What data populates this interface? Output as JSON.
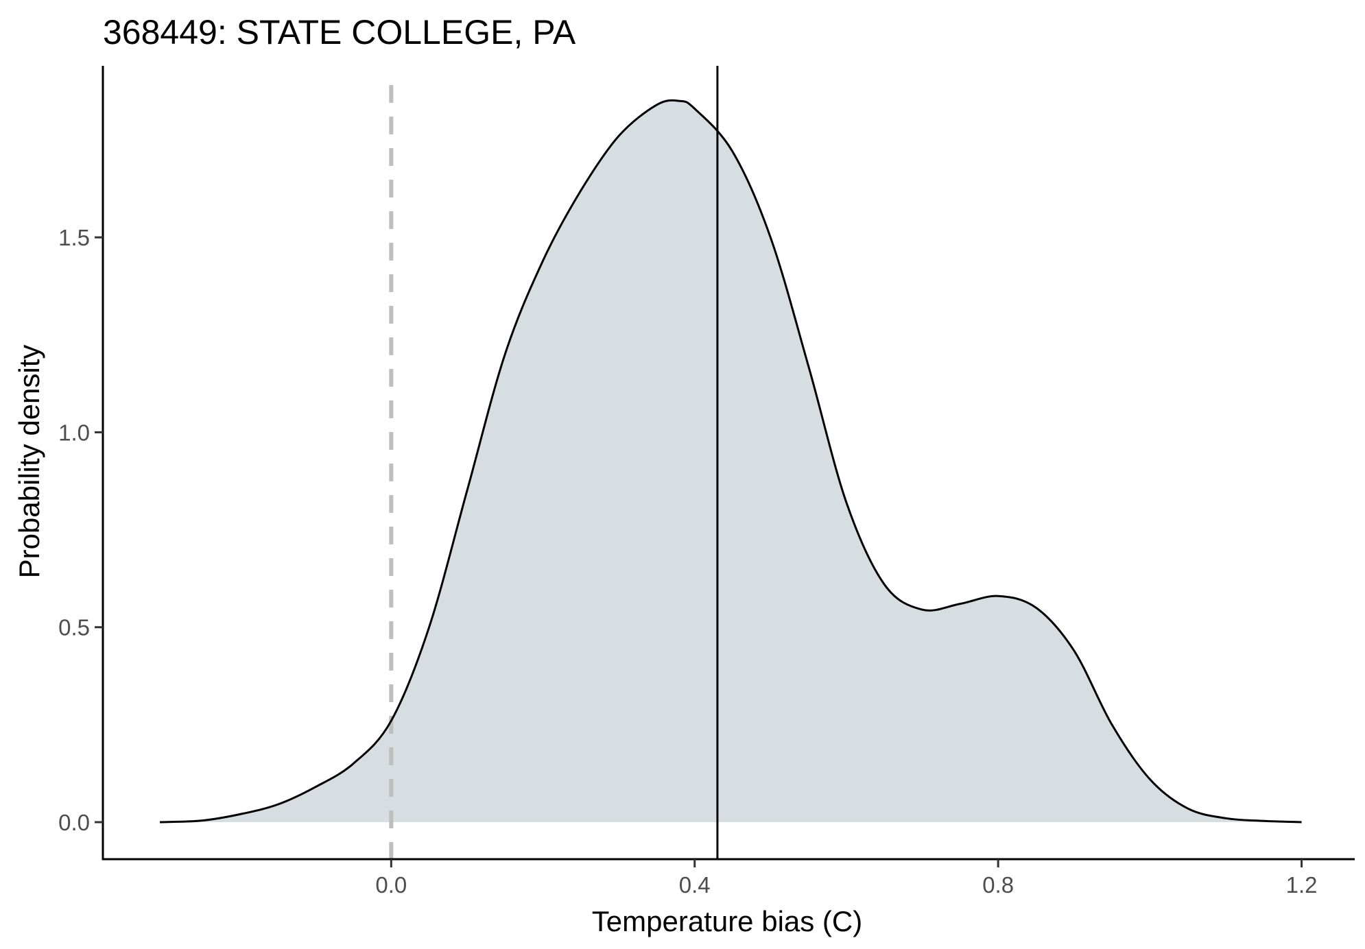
{
  "chart_data": {
    "type": "area",
    "title": "368449: STATE COLLEGE, PA",
    "xlabel": "Temperature bias (C)",
    "ylabel": "Probability density",
    "xlim": [
      -0.38,
      1.27
    ],
    "ylim": [
      -0.095,
      1.94
    ],
    "x_ticks": [
      0.0,
      0.4,
      0.8,
      1.2
    ],
    "x_tick_labels": [
      "0.0",
      "0.4",
      "0.8",
      "1.2"
    ],
    "y_ticks": [
      0.0,
      0.5,
      1.0,
      1.5
    ],
    "y_tick_labels": [
      "0.0",
      "0.5",
      "1.0",
      "1.5"
    ],
    "grid": false,
    "fill_color": "#d7dee1",
    "line_color": "#000000",
    "density_curve": {
      "x": [
        -0.305,
        -0.25,
        -0.2,
        -0.15,
        -0.1,
        -0.05,
        0.0,
        0.05,
        0.1,
        0.15,
        0.2,
        0.25,
        0.3,
        0.35,
        0.38,
        0.4,
        0.45,
        0.5,
        0.55,
        0.6,
        0.65,
        0.7,
        0.75,
        0.8,
        0.85,
        0.9,
        0.95,
        1.0,
        1.05,
        1.1,
        1.15,
        1.2
      ],
      "y": [
        0.0,
        0.004,
        0.02,
        0.045,
        0.09,
        0.15,
        0.26,
        0.5,
        0.85,
        1.2,
        1.44,
        1.62,
        1.76,
        1.84,
        1.85,
        1.83,
        1.72,
        1.5,
        1.17,
        0.82,
        0.61,
        0.545,
        0.56,
        0.58,
        0.55,
        0.44,
        0.25,
        0.11,
        0.035,
        0.01,
        0.003,
        0.0
      ]
    },
    "reference_line": {
      "x": 0.0,
      "style": "dashed",
      "color": "#bebebe"
    },
    "mean_line": {
      "x": 0.43,
      "style": "solid",
      "color": "#000000"
    }
  }
}
